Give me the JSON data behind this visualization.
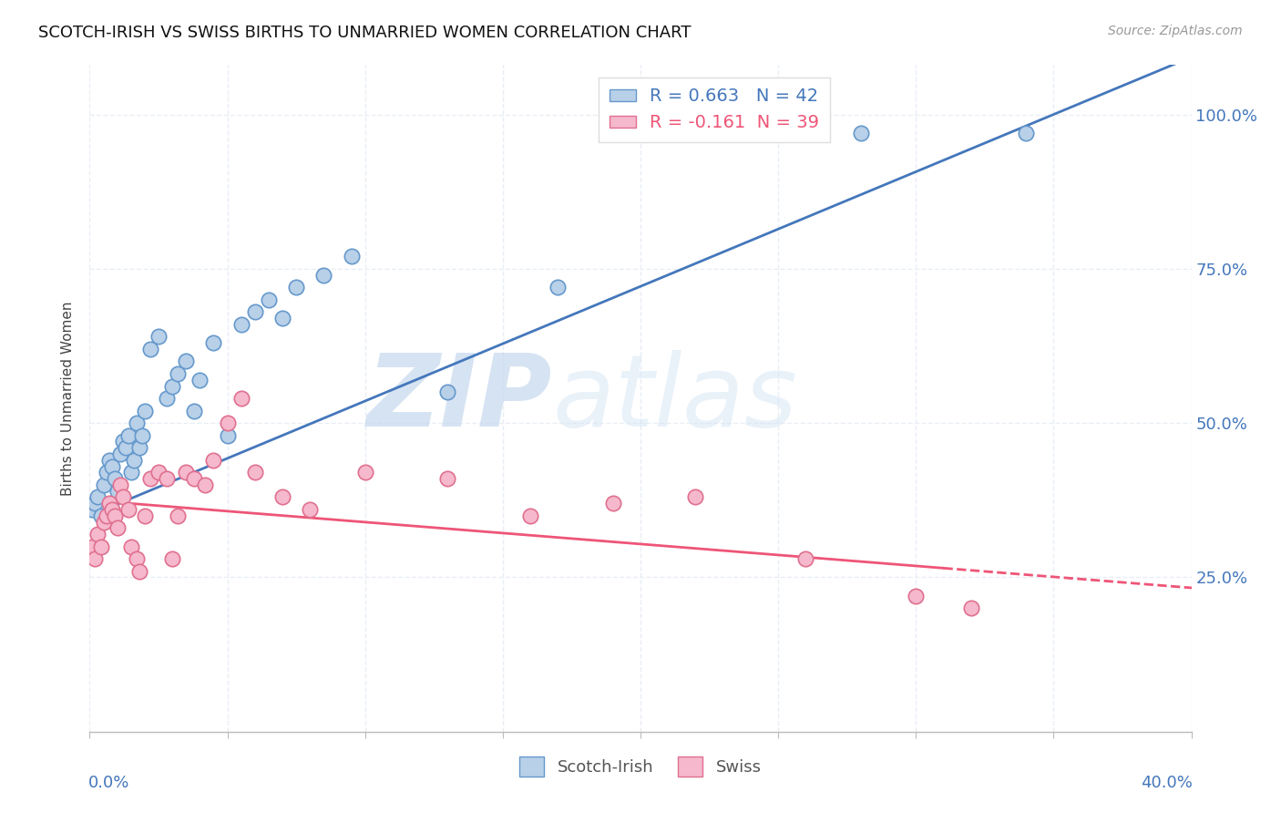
{
  "title": "SCOTCH-IRISH VS SWISS BIRTHS TO UNMARRIED WOMEN CORRELATION CHART",
  "source": "Source: ZipAtlas.com",
  "ylabel": "Births to Unmarried Women",
  "yticks_right": [
    "25.0%",
    "50.0%",
    "75.0%",
    "100.0%"
  ],
  "ytick_vals": [
    0.25,
    0.5,
    0.75,
    1.0
  ],
  "xmin": 0.0,
  "xmax": 0.4,
  "ymin": 0.0,
  "ymax": 1.08,
  "scotch_irish_color": "#b8d0e8",
  "swiss_color": "#f5b8cc",
  "scotch_irish_edge": "#6699cc",
  "swiss_edge": "#e07090",
  "trend_scotch_color": "#4477bb",
  "trend_swiss_color": "#ee5577",
  "R_scotch": 0.663,
  "N_scotch": 42,
  "R_swiss": -0.161,
  "N_swiss": 39,
  "legend_label_scotch": "Scotch-Irish",
  "legend_label_swiss": "Swiss",
  "grid_color": "#e8eef5",
  "scotch_x": [
    0.001,
    0.002,
    0.003,
    0.004,
    0.005,
    0.006,
    0.007,
    0.008,
    0.009,
    0.01,
    0.011,
    0.012,
    0.013,
    0.014,
    0.015,
    0.016,
    0.017,
    0.018,
    0.019,
    0.02,
    0.022,
    0.025,
    0.028,
    0.03,
    0.032,
    0.035,
    0.038,
    0.04,
    0.045,
    0.05,
    0.055,
    0.06,
    0.065,
    0.07,
    0.075,
    0.085,
    0.095,
    0.13,
    0.17,
    0.22,
    0.28,
    0.34
  ],
  "scotch_y": [
    0.36,
    0.37,
    0.38,
    0.35,
    0.4,
    0.42,
    0.44,
    0.43,
    0.41,
    0.39,
    0.45,
    0.47,
    0.46,
    0.48,
    0.42,
    0.44,
    0.5,
    0.46,
    0.48,
    0.52,
    0.62,
    0.64,
    0.54,
    0.56,
    0.58,
    0.6,
    0.52,
    0.57,
    0.63,
    0.48,
    0.66,
    0.68,
    0.7,
    0.67,
    0.72,
    0.74,
    0.77,
    0.55,
    0.72,
    0.97,
    0.97,
    0.97
  ],
  "swiss_x": [
    0.001,
    0.002,
    0.003,
    0.004,
    0.005,
    0.006,
    0.007,
    0.008,
    0.009,
    0.01,
    0.011,
    0.012,
    0.014,
    0.015,
    0.017,
    0.018,
    0.02,
    0.022,
    0.025,
    0.028,
    0.03,
    0.032,
    0.035,
    0.038,
    0.042,
    0.045,
    0.05,
    0.055,
    0.06,
    0.07,
    0.08,
    0.1,
    0.13,
    0.16,
    0.19,
    0.22,
    0.26,
    0.3,
    0.32
  ],
  "swiss_y": [
    0.3,
    0.28,
    0.32,
    0.3,
    0.34,
    0.35,
    0.37,
    0.36,
    0.35,
    0.33,
    0.4,
    0.38,
    0.36,
    0.3,
    0.28,
    0.26,
    0.35,
    0.41,
    0.42,
    0.41,
    0.28,
    0.35,
    0.42,
    0.41,
    0.4,
    0.44,
    0.5,
    0.54,
    0.42,
    0.38,
    0.36,
    0.42,
    0.41,
    0.35,
    0.37,
    0.38,
    0.28,
    0.22,
    0.2
  ]
}
